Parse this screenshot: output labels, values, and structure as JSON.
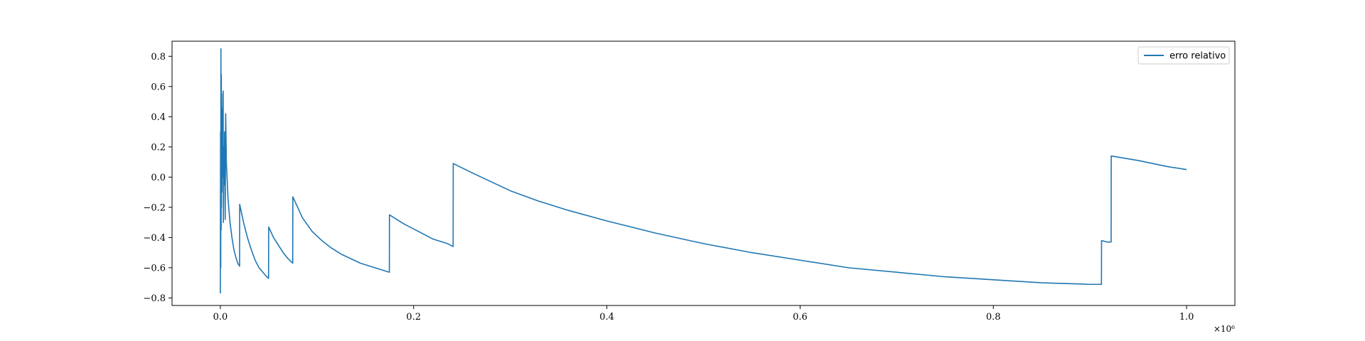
{
  "chart_data": {
    "type": "line",
    "title": "",
    "xlabel": "",
    "ylabel": "",
    "x_offset_label": "×10⁶",
    "x_scale": 1000000,
    "xlim": [
      -0.05,
      1.05
    ],
    "ylim": [
      -0.85,
      0.9
    ],
    "x_ticks": [
      0.0,
      0.2,
      0.4,
      0.6,
      0.8,
      1.0
    ],
    "x_tick_labels": [
      "0.0",
      "0.2",
      "0.4",
      "0.6",
      "0.8",
      "1.0"
    ],
    "y_ticks": [
      -0.8,
      -0.6,
      -0.4,
      -0.2,
      0.0,
      0.2,
      0.4,
      0.6,
      0.8
    ],
    "y_tick_labels": [
      "−0.8",
      "−0.6",
      "−0.4",
      "−0.2",
      "0.0",
      "0.2",
      "0.4",
      "0.6",
      "0.8"
    ],
    "grid": false,
    "legend_position": "top-right",
    "series": [
      {
        "name": "erro relativo",
        "color": "#1f77b4",
        "x": [
          0.0,
          0.0002,
          0.0004,
          0.0006,
          0.0008,
          0.001,
          0.0011,
          0.0013,
          0.0016,
          0.002,
          0.0022,
          0.0026,
          0.0029,
          0.0031,
          0.0035,
          0.004,
          0.0044,
          0.0046,
          0.005,
          0.0055,
          0.006,
          0.0062,
          0.008,
          0.01,
          0.012,
          0.014,
          0.016,
          0.018,
          0.0199,
          0.02,
          0.024,
          0.028,
          0.032,
          0.036,
          0.04,
          0.044,
          0.048,
          0.0499,
          0.05,
          0.055,
          0.06,
          0.065,
          0.07,
          0.0749,
          0.075,
          0.085,
          0.095,
          0.105,
          0.115,
          0.125,
          0.135,
          0.145,
          0.155,
          0.165,
          0.1749,
          0.175,
          0.19,
          0.205,
          0.22,
          0.235,
          0.2409,
          0.241,
          0.26,
          0.28,
          0.3,
          0.33,
          0.36,
          0.4,
          0.45,
          0.5,
          0.55,
          0.6,
          0.65,
          0.7,
          0.75,
          0.8,
          0.85,
          0.9,
          0.9119,
          0.912,
          0.918,
          0.9219,
          0.922,
          0.95,
          0.98,
          1.0
        ],
        "y": [
          -0.77,
          0.3,
          -0.6,
          0.85,
          -0.35,
          0.68,
          -0.2,
          0.55,
          -0.1,
          0.45,
          0.0,
          0.35,
          0.57,
          -0.3,
          0.2,
          -0.05,
          0.3,
          0.1,
          -0.28,
          0.42,
          0.2,
          0.1,
          -0.15,
          -0.3,
          -0.4,
          -0.48,
          -0.53,
          -0.57,
          -0.59,
          -0.18,
          -0.3,
          -0.4,
          -0.48,
          -0.55,
          -0.6,
          -0.63,
          -0.66,
          -0.67,
          -0.33,
          -0.4,
          -0.45,
          -0.5,
          -0.54,
          -0.57,
          -0.13,
          -0.27,
          -0.36,
          -0.42,
          -0.47,
          -0.51,
          -0.54,
          -0.57,
          -0.59,
          -0.61,
          -0.63,
          -0.25,
          -0.31,
          -0.36,
          -0.41,
          -0.44,
          -0.46,
          0.09,
          0.03,
          -0.03,
          -0.09,
          -0.16,
          -0.22,
          -0.29,
          -0.37,
          -0.44,
          -0.5,
          -0.55,
          -0.6,
          -0.63,
          -0.66,
          -0.68,
          -0.7,
          -0.71,
          -0.71,
          -0.42,
          -0.43,
          -0.43,
          0.14,
          0.11,
          0.07,
          0.05
        ]
      }
    ]
  }
}
